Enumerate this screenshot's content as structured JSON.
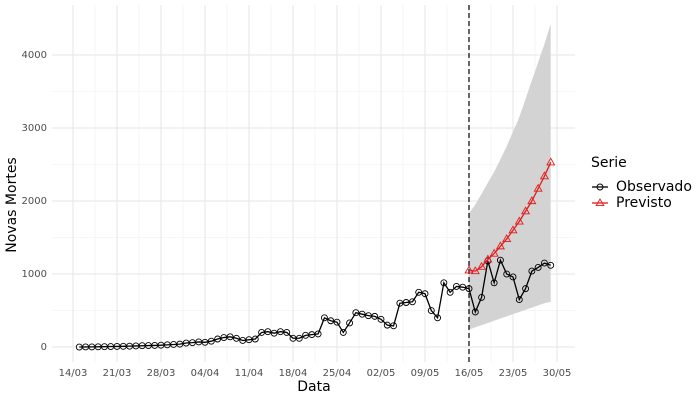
{
  "chart_data": {
    "type": "line",
    "x_label": "Data",
    "y_label": "Novas Mortes",
    "legend_title": "Serie",
    "legend": "right",
    "x": [
      "14/03",
      "15/03",
      "16/03",
      "17/03",
      "18/03",
      "19/03",
      "20/03",
      "21/03",
      "22/03",
      "23/03",
      "24/03",
      "25/03",
      "26/03",
      "27/03",
      "28/03",
      "29/03",
      "30/03",
      "31/03",
      "01/04",
      "02/04",
      "03/04",
      "04/04",
      "05/04",
      "06/04",
      "07/04",
      "08/04",
      "09/04",
      "10/04",
      "11/04",
      "12/04",
      "13/04",
      "14/04",
      "15/04",
      "16/04",
      "17/04",
      "18/04",
      "19/04",
      "20/04",
      "21/04",
      "22/04",
      "23/04",
      "24/04",
      "25/04",
      "26/04",
      "27/04",
      "28/04",
      "29/04",
      "30/04",
      "01/05",
      "02/05",
      "03/05",
      "04/05",
      "05/05",
      "06/05",
      "07/05",
      "08/05",
      "09/05",
      "10/05",
      "11/05",
      "12/05",
      "13/05",
      "14/05",
      "15/05",
      "16/05",
      "17/05",
      "18/05",
      "19/05",
      "20/05",
      "21/05",
      "22/05",
      "23/05",
      "24/05",
      "25/05",
      "26/05",
      "27/05",
      "28/05",
      "29/05",
      "30/05"
    ],
    "xticks": [
      "14/03",
      "21/03",
      "28/03",
      "04/04",
      "11/04",
      "18/04",
      "25/04",
      "02/05",
      "09/05",
      "16/05",
      "23/05",
      "30/05"
    ],
    "vline": "16/05",
    "ylim": [
      -205,
      4685
    ],
    "yticks": [
      0,
      1000,
      2000,
      3000,
      4000
    ],
    "grid": true,
    "series": [
      {
        "name": "Observado",
        "color": "#000000",
        "marker": "circle",
        "values": [
          null,
          0,
          1,
          2,
          3,
          5,
          7,
          8,
          10,
          12,
          15,
          18,
          20,
          22,
          25,
          30,
          35,
          40,
          55,
          60,
          70,
          65,
          80,
          110,
          130,
          140,
          120,
          90,
          100,
          110,
          200,
          210,
          190,
          210,
          200,
          120,
          120,
          160,
          170,
          180,
          400,
          360,
          340,
          200,
          330,
          470,
          450,
          430,
          420,
          380,
          300,
          290,
          600,
          610,
          620,
          750,
          730,
          500,
          400,
          880,
          750,
          830,
          820,
          800,
          480,
          680,
          1180,
          880,
          1190,
          1000,
          960,
          650,
          800,
          1040,
          1090,
          1150,
          1120,
          null
        ]
      },
      {
        "name": "Previsto",
        "color": "#e41a1c",
        "marker": "triangle",
        "values": [
          null,
          null,
          null,
          null,
          null,
          null,
          null,
          null,
          null,
          null,
          null,
          null,
          null,
          null,
          null,
          null,
          null,
          null,
          null,
          null,
          null,
          null,
          null,
          null,
          null,
          null,
          null,
          null,
          null,
          null,
          null,
          null,
          null,
          null,
          null,
          null,
          null,
          null,
          null,
          null,
          null,
          null,
          null,
          null,
          null,
          null,
          null,
          null,
          null,
          null,
          null,
          null,
          null,
          null,
          null,
          null,
          null,
          null,
          null,
          null,
          null,
          null,
          null,
          1050,
          1040,
          1100,
          1200,
          1280,
          1380,
          1480,
          1600,
          1720,
          1860,
          2000,
          2170,
          2340,
          2530,
          null
        ]
      }
    ],
    "interval": {
      "color": "#d3d3d3",
      "lower": [
        null,
        null,
        null,
        null,
        null,
        null,
        null,
        null,
        null,
        null,
        null,
        null,
        null,
        null,
        null,
        null,
        null,
        null,
        null,
        null,
        null,
        null,
        null,
        null,
        null,
        null,
        null,
        null,
        null,
        null,
        null,
        null,
        null,
        null,
        null,
        null,
        null,
        null,
        null,
        null,
        null,
        null,
        null,
        null,
        null,
        null,
        null,
        null,
        null,
        null,
        null,
        null,
        null,
        null,
        null,
        null,
        null,
        null,
        null,
        null,
        null,
        null,
        null,
        240,
        270,
        300,
        330,
        360,
        390,
        420,
        450,
        480,
        510,
        540,
        570,
        600,
        620,
        null
      ],
      "upper": [
        null,
        null,
        null,
        null,
        null,
        null,
        null,
        null,
        null,
        null,
        null,
        null,
        null,
        null,
        null,
        null,
        null,
        null,
        null,
        null,
        null,
        null,
        null,
        null,
        null,
        null,
        null,
        null,
        null,
        null,
        null,
        null,
        null,
        null,
        null,
        null,
        null,
        null,
        null,
        null,
        null,
        null,
        null,
        null,
        null,
        null,
        null,
        null,
        null,
        null,
        null,
        null,
        null,
        null,
        null,
        null,
        null,
        null,
        null,
        null,
        null,
        null,
        null,
        1830,
        1950,
        2100,
        2250,
        2400,
        2570,
        2750,
        2950,
        3150,
        3400,
        3650,
        3900,
        4150,
        4430,
        null
      ]
    }
  }
}
